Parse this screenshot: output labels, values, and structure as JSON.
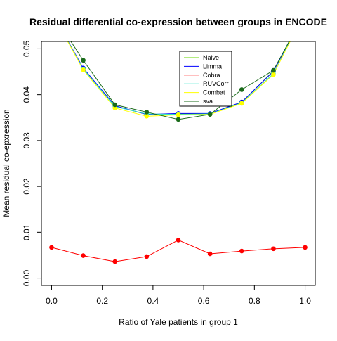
{
  "chart_data": {
    "type": "line",
    "title": "Residual differential co-expression between groups in ENCODE",
    "xlabel": "Ratio of Yale patients in group 1",
    "ylabel": "Mean residual co-epxression",
    "xlim": [
      -0.04,
      1.04
    ],
    "ylim": [
      -0.0016,
      0.0516
    ],
    "x_ticks": [
      "0.0",
      "0.2",
      "0.4",
      "0.6",
      "0.8",
      "1.0"
    ],
    "y_ticks": [
      "0.00",
      "0.01",
      "0.02",
      "0.03",
      "0.04",
      "0.05"
    ],
    "x": [
      0.0,
      0.125,
      0.25,
      0.375,
      0.5,
      0.625,
      0.75,
      0.875,
      1.0
    ],
    "grid": false,
    "legend_position": "top-right",
    "series": [
      {
        "name": "Naive",
        "color": "#66d900",
        "values": [
          0.058,
          0.0457,
          0.0375,
          0.0357,
          0.0358,
          0.0358,
          0.0383,
          0.0452,
          0.058
        ]
      },
      {
        "name": "Limma",
        "color": "#0000ff",
        "values": [
          0.058,
          0.0458,
          0.0376,
          0.0357,
          0.0359,
          0.0359,
          0.0384,
          0.0451,
          0.058
        ]
      },
      {
        "name": "Cobra",
        "color": "#ff0000",
        "values": [
          0.0067,
          0.0049,
          0.0036,
          0.0047,
          0.0083,
          0.0053,
          0.0059,
          0.0064,
          0.0067
        ]
      },
      {
        "name": "RUVCorr",
        "color": "#2fe6c8",
        "values": [
          0.058,
          0.0456,
          0.0374,
          0.0358,
          0.0357,
          0.0358,
          0.0382,
          0.0446,
          0.058
        ]
      },
      {
        "name": "Combat",
        "color": "#ffff00",
        "values": [
          0.058,
          0.0454,
          0.0371,
          0.0353,
          0.0356,
          0.0357,
          0.0381,
          0.0444,
          0.058
        ]
      },
      {
        "name": "sva",
        "color": "#1a6b1a",
        "values": [
          0.058,
          0.0475,
          0.0378,
          0.0362,
          0.0346,
          0.0357,
          0.0411,
          0.0453,
          0.058
        ]
      }
    ]
  }
}
